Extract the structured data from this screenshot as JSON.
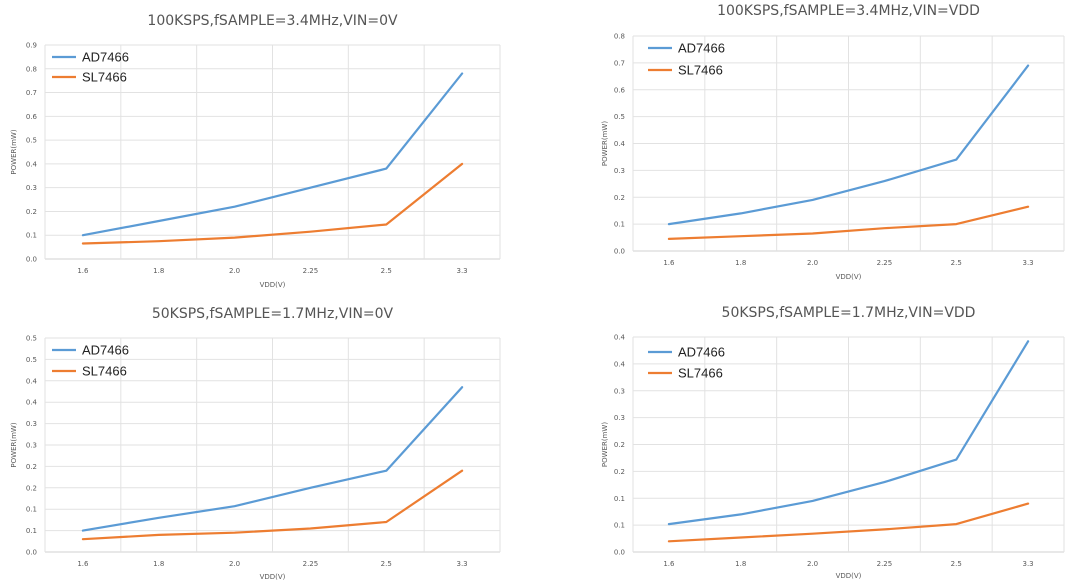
{
  "chart_data": [
    {
      "type": "line",
      "title": "100KSPS,fSAMPLE=3.4MHz,VIN=0V",
      "xlabel": "VDD(V)",
      "ylabel": "POWER(mW)",
      "categories": [
        "1.6",
        "1.8",
        "2.0",
        "2.25",
        "2.5",
        "3.3"
      ],
      "y_ticks": [
        "0.0",
        "0.1",
        "0.2",
        "0.3",
        "0.4",
        "0.5",
        "0.6",
        "0.7",
        "0.8",
        "0.9"
      ],
      "ylim": [
        0,
        0.9
      ],
      "legend": "top-left",
      "series": [
        {
          "name": "AD7466",
          "color": "#5b9bd5",
          "values": [
            0.1,
            0.16,
            0.22,
            0.3,
            0.38,
            0.78
          ]
        },
        {
          "name": "SL7466",
          "color": "#ed7d31",
          "values": [
            0.065,
            0.075,
            0.09,
            0.115,
            0.145,
            0.4
          ]
        }
      ]
    },
    {
      "type": "line",
      "title": "100KSPS,fSAMPLE=3.4MHz,VIN=VDD",
      "xlabel": "VDD(V)",
      "ylabel": "POWER(mW)",
      "categories": [
        "1.6",
        "1.8",
        "2.0",
        "2.25",
        "2.5",
        "3.3"
      ],
      "y_ticks": [
        "0.0",
        "0.1",
        "0.2",
        "0.3",
        "0.4",
        "0.5",
        "0.6",
        "0.7",
        "0.8"
      ],
      "ylim": [
        0,
        0.8
      ],
      "legend": "top-left",
      "series": [
        {
          "name": "AD7466",
          "color": "#5b9bd5",
          "values": [
            0.1,
            0.14,
            0.19,
            0.26,
            0.34,
            0.69
          ]
        },
        {
          "name": "SL7466",
          "color": "#ed7d31",
          "values": [
            0.045,
            0.055,
            0.065,
            0.085,
            0.1,
            0.165
          ]
        }
      ]
    },
    {
      "type": "line",
      "title": "50KSPS,fSAMPLE=1.7MHz,VIN=0V",
      "xlabel": "VDD(V)",
      "ylabel": "POWER(mW)",
      "categories": [
        "1.6",
        "1.8",
        "2.0",
        "2.25",
        "2.5",
        "3.3"
      ],
      "y_ticks": [
        "0.0",
        "0.1",
        "0.1",
        "0.2",
        "0.2",
        "0.3",
        "0.3",
        "0.4",
        "0.4",
        "0.5",
        "0.5"
      ],
      "ylim": [
        0,
        0.5
      ],
      "legend": "top-left",
      "series": [
        {
          "name": "AD7466",
          "color": "#5b9bd5",
          "values": [
            0.05,
            0.08,
            0.107,
            0.15,
            0.19,
            0.385
          ]
        },
        {
          "name": "SL7466",
          "color": "#ed7d31",
          "values": [
            0.03,
            0.04,
            0.045,
            0.055,
            0.07,
            0.19
          ]
        }
      ]
    },
    {
      "type": "line",
      "title": "50KSPS,fSAMPLE=1.7MHz,VIN=VDD",
      "xlabel": "VDD(V)",
      "ylabel": "POWER(mW)",
      "categories": [
        "1.6",
        "1.8",
        "2.0",
        "2.25",
        "2.5",
        "3.3"
      ],
      "y_ticks": [
        "0.0",
        "0.1",
        "0.1",
        "0.2",
        "0.2",
        "0.3",
        "0.3",
        "0.4",
        "0.4"
      ],
      "ylim": [
        0,
        0.4
      ],
      "legend": "top-left",
      "series": [
        {
          "name": "AD7466",
          "color": "#5b9bd5",
          "values": [
            0.052,
            0.07,
            0.095,
            0.13,
            0.172,
            0.392
          ]
        },
        {
          "name": "SL7466",
          "color": "#ed7d31",
          "values": [
            0.02,
            0.027,
            0.034,
            0.042,
            0.052,
            0.09
          ]
        }
      ]
    }
  ]
}
